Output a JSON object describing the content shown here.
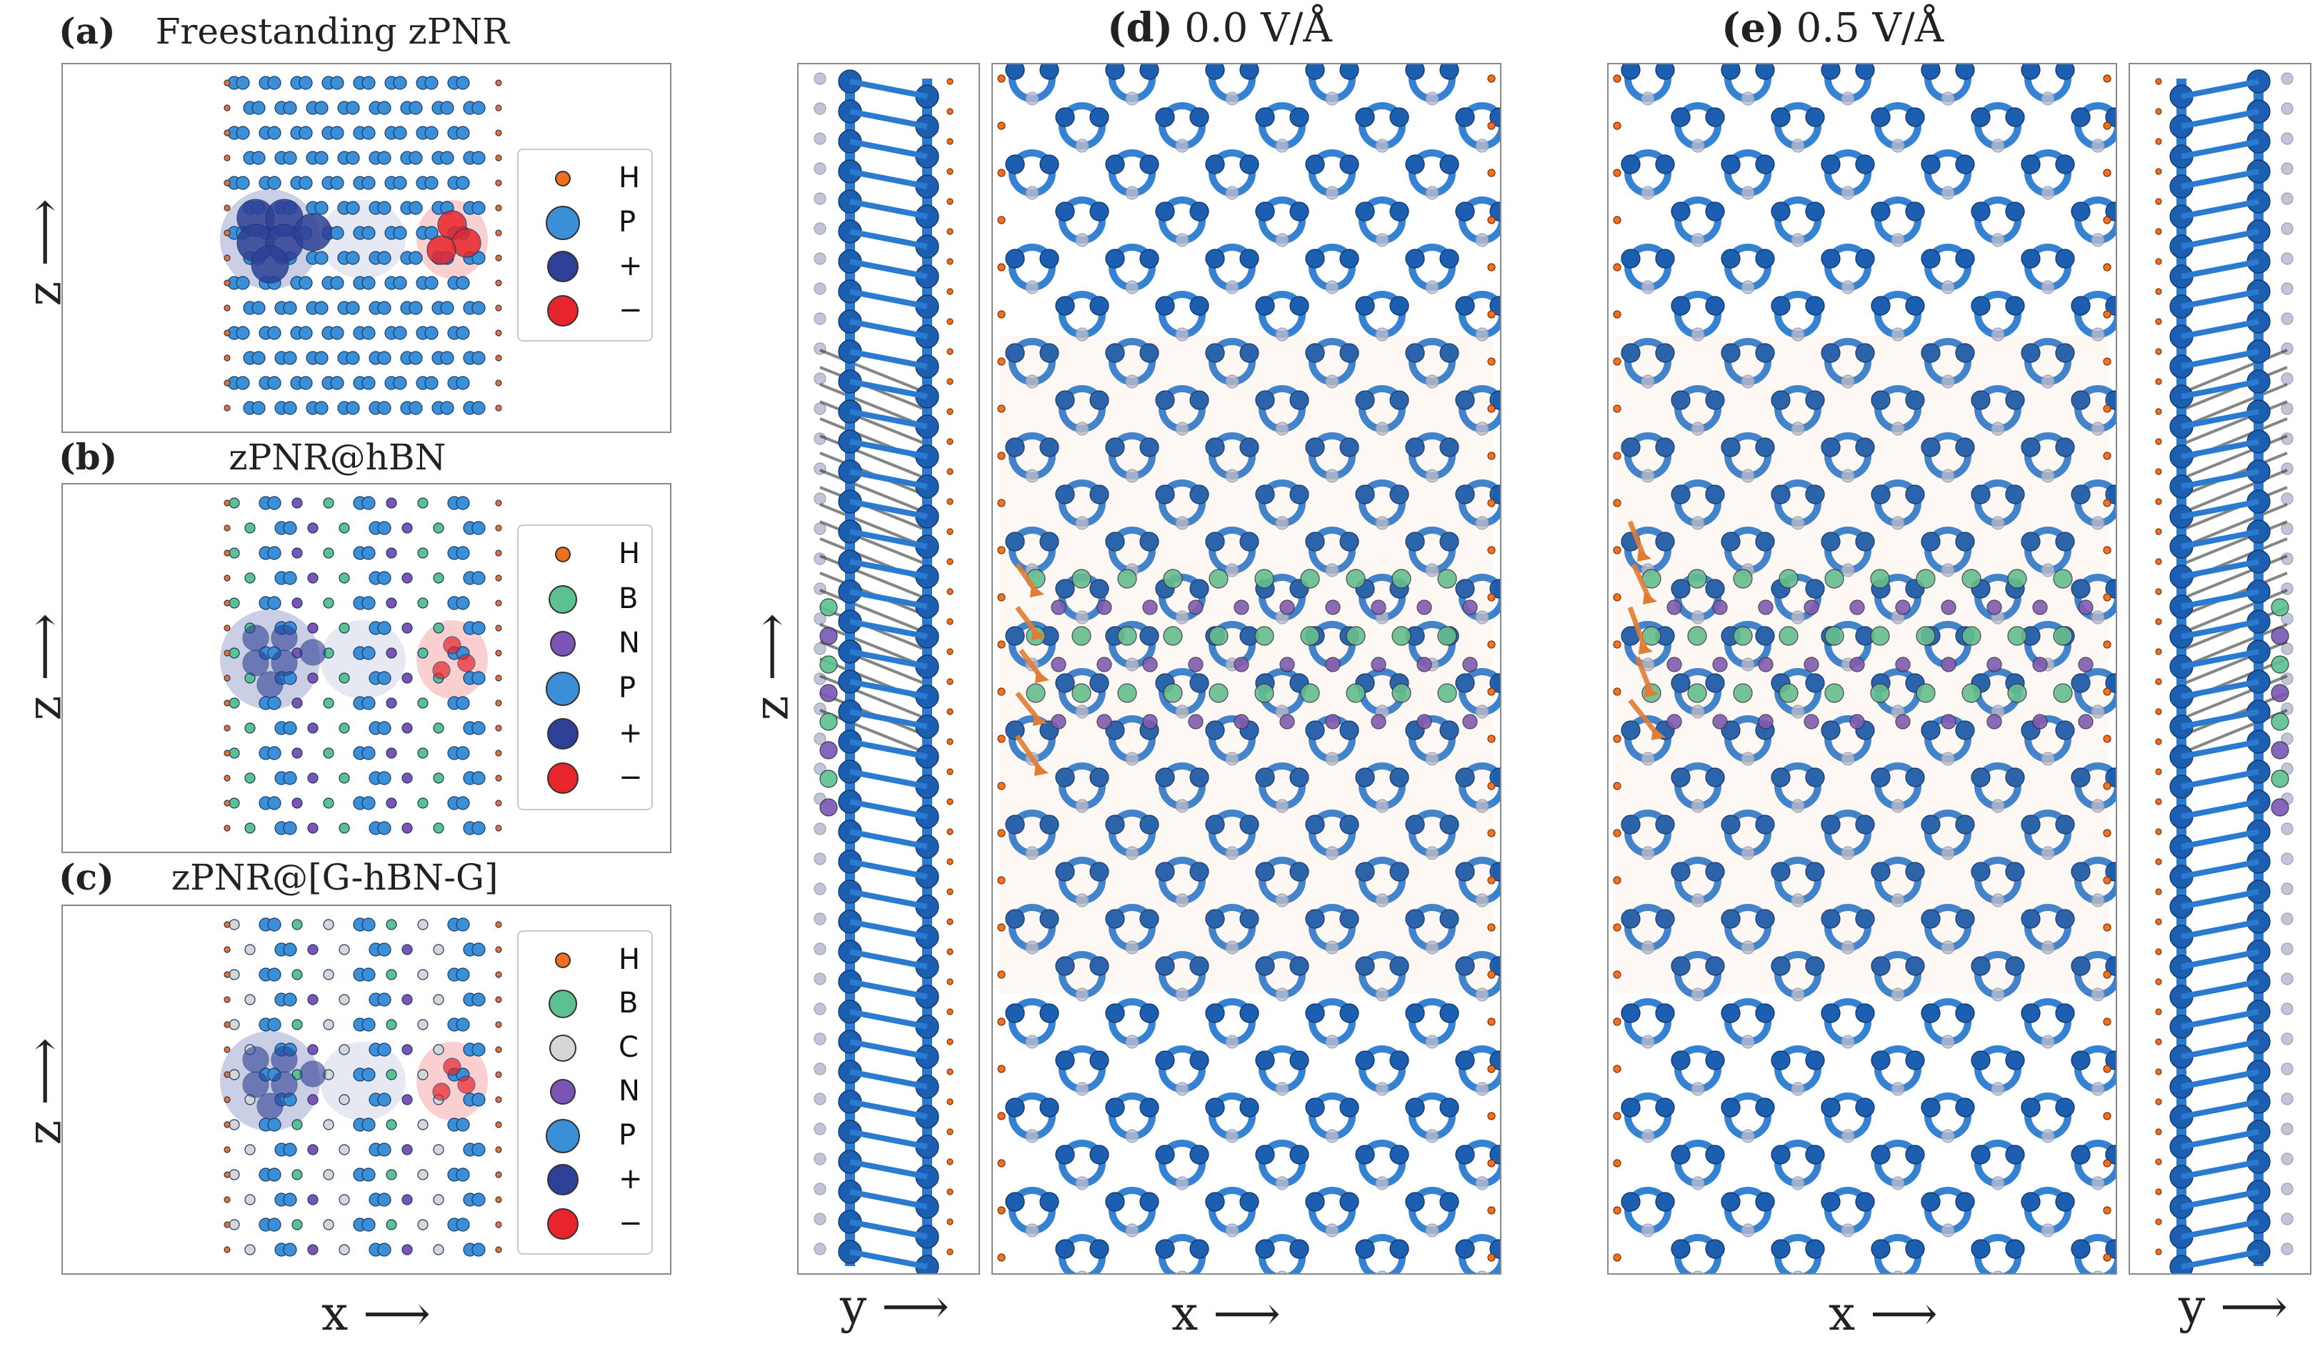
{
  "panels": {
    "a": {
      "tag": "(a)",
      "title": "Freestanding zPNR",
      "zlabel": "z ⟶",
      "legend": [
        {
          "label": "H",
          "color": "#f07020",
          "size": 22
        },
        {
          "label": "P",
          "color": "#3a8fd6",
          "size": 48
        },
        {
          "label": "+",
          "color": "#2e3f96",
          "size": 44
        },
        {
          "label": "−",
          "color": "#e8252a",
          "size": 44
        }
      ]
    },
    "b": {
      "tag": "(b)",
      "title": "zPNR@hBN",
      "zlabel": "z ⟶",
      "legend": [
        {
          "label": "H",
          "color": "#f07020",
          "size": 22
        },
        {
          "label": "B",
          "color": "#5cc090",
          "size": 40
        },
        {
          "label": "N",
          "color": "#7a55b5",
          "size": 36
        },
        {
          "label": "P",
          "color": "#3a8fd6",
          "size": 48
        },
        {
          "label": "+",
          "color": "#2e3f96",
          "size": 44
        },
        {
          "label": "−",
          "color": "#e8252a",
          "size": 44
        }
      ]
    },
    "c": {
      "tag": "(c)",
      "title": "zPNR@[G-hBN-G]",
      "zlabel": "z ⟶",
      "xlabel": "x ⟶",
      "legend": [
        {
          "label": "H",
          "color": "#f07020",
          "size": 22
        },
        {
          "label": "B",
          "color": "#5cc090",
          "size": 40
        },
        {
          "label": "C",
          "color": "#d6d6d6",
          "size": 38
        },
        {
          "label": "N",
          "color": "#7a55b5",
          "size": 36
        },
        {
          "label": "P",
          "color": "#3a8fd6",
          "size": 48
        },
        {
          "label": "+",
          "color": "#2e3f96",
          "size": 44
        },
        {
          "label": "−",
          "color": "#e8252a",
          "size": 44
        }
      ]
    },
    "d": {
      "tag": "(d)",
      "title": "0.0 V/Å",
      "zlabel": "z ⟶",
      "ylabel": "y ⟶",
      "xlabel": "x ⟶"
    },
    "e": {
      "tag": "(e)",
      "title": "0.5 V/Å",
      "ylabel": "y ⟶",
      "xlabel": "x ⟶"
    }
  },
  "colors": {
    "H": "#f07020",
    "B": "#5cc090",
    "C": "#d6d6d6",
    "N": "#7a55b5",
    "P": "#3a8fd6",
    "P_dark": "#1c5fb0",
    "plus": "#2e3f96",
    "minus": "#e8252a",
    "bond": "#2a7ad0",
    "ghost": "#b8bcd0",
    "arrow": "#e07a30",
    "dark_bond": "#222222"
  }
}
